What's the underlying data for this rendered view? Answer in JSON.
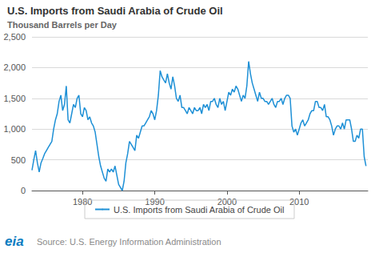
{
  "chart_data": {
    "type": "line",
    "title": "U.S. Imports from Saudi Arabia of Crude Oil",
    "subtitle": "Thousand Barrels per Day",
    "annotations": [
      "eia",
      "Source: U.S. Energy Information Administration"
    ],
    "legend": "bottom",
    "grid": true,
    "xlim": [
      1973,
      2019.5
    ],
    "xticks": [
      1980,
      1990,
      2000,
      2010
    ],
    "ylim": [
      0,
      2500
    ],
    "yticks": [
      0,
      500,
      {
        "value": 1000,
        "label": "1,000"
      },
      {
        "value": 1500,
        "label": "1,500"
      },
      {
        "value": 2000,
        "label": "2,000"
      },
      {
        "value": 2500,
        "label": "2,500"
      }
    ],
    "x": [
      1973,
      1973.25,
      1973.5,
      1973.75,
      1974,
      1974.25,
      1974.5,
      1974.75,
      1975,
      1975.25,
      1975.5,
      1975.75,
      1976,
      1976.25,
      1976.5,
      1976.75,
      1977,
      1977.25,
      1977.5,
      1977.75,
      1978,
      1978.25,
      1978.5,
      1978.75,
      1979,
      1979.25,
      1979.5,
      1979.75,
      1980,
      1980.25,
      1980.5,
      1980.75,
      1981,
      1981.25,
      1981.5,
      1981.75,
      1982,
      1982.25,
      1982.5,
      1982.75,
      1983,
      1983.25,
      1983.5,
      1983.75,
      1984,
      1984.25,
      1984.5,
      1984.75,
      1985,
      1985.25,
      1985.5,
      1985.75,
      1986,
      1986.25,
      1986.5,
      1986.75,
      1987,
      1987.25,
      1987.5,
      1987.75,
      1988,
      1988.25,
      1988.5,
      1988.75,
      1989,
      1989.25,
      1989.5,
      1989.75,
      1990,
      1990.25,
      1990.5,
      1990.75,
      1991,
      1991.25,
      1991.5,
      1991.75,
      1992,
      1992.25,
      1992.5,
      1992.75,
      1993,
      1993.25,
      1993.5,
      1993.75,
      1994,
      1994.25,
      1994.5,
      1994.75,
      1995,
      1995.25,
      1995.5,
      1995.75,
      1996,
      1996.25,
      1996.5,
      1996.75,
      1997,
      1997.25,
      1997.5,
      1997.75,
      1998,
      1998.25,
      1998.5,
      1998.75,
      1999,
      1999.25,
      1999.5,
      1999.75,
      2000,
      2000.25,
      2000.5,
      2000.75,
      2001,
      2001.25,
      2001.5,
      2001.75,
      2002,
      2002.25,
      2002.5,
      2002.75,
      2003,
      2003.25,
      2003.5,
      2003.75,
      2004,
      2004.25,
      2004.5,
      2004.75,
      2005,
      2005.25,
      2005.5,
      2005.75,
      2006,
      2006.25,
      2006.5,
      2006.75,
      2007,
      2007.25,
      2007.5,
      2007.75,
      2008,
      2008.25,
      2008.5,
      2008.75,
      2009,
      2009.25,
      2009.5,
      2009.75,
      2010,
      2010.25,
      2010.5,
      2010.75,
      2011,
      2011.25,
      2011.5,
      2011.75,
      2012,
      2012.25,
      2012.5,
      2012.75,
      2013,
      2013.25,
      2013.5,
      2013.75,
      2014,
      2014.25,
      2014.5,
      2014.75,
      2015,
      2015.25,
      2015.5,
      2015.75,
      2016,
      2016.25,
      2016.5,
      2016.75,
      2017,
      2017.25,
      2017.5,
      2017.75,
      2018,
      2018.25,
      2018.5,
      2018.75,
      2019,
      2019.25
    ],
    "series": [
      {
        "name": "U.S. Imports from Saudi Arabia of Crude Oil",
        "color": "#1e90d6",
        "values": [
          330,
          500,
          650,
          450,
          300,
          450,
          520,
          600,
          650,
          700,
          750,
          800,
          1000,
          1150,
          1250,
          1450,
          1550,
          1300,
          1400,
          1700,
          1150,
          1100,
          1250,
          1400,
          1350,
          1500,
          1550,
          1250,
          1200,
          1350,
          1300,
          1150,
          1200,
          1100,
          1050,
          950,
          750,
          550,
          400,
          300,
          200,
          150,
          350,
          300,
          350,
          300,
          400,
          250,
          100,
          50,
          0,
          150,
          450,
          600,
          800,
          750,
          700,
          650,
          900,
          850,
          950,
          1050,
          1050,
          1100,
          1150,
          1200,
          1300,
          1250,
          1150,
          1300,
          1550,
          1950,
          1850,
          1800,
          1750,
          1900,
          1750,
          1650,
          1850,
          1700,
          1500,
          1450,
          1550,
          1350,
          1350,
          1300,
          1250,
          1350,
          1300,
          1250,
          1350,
          1300,
          1300,
          1350,
          1250,
          1400,
          1350,
          1400,
          1300,
          1450,
          1450,
          1500,
          1400,
          1350,
          1500,
          1400,
          1450,
          1300,
          1450,
          1600,
          1550,
          1650,
          1600,
          1700,
          1650,
          1550,
          1450,
          1550,
          1500,
          1700,
          2100,
          1900,
          1750,
          1650,
          1550,
          1450,
          1600,
          1500,
          1500,
          1450,
          1450,
          1400,
          1450,
          1500,
          1400,
          1350,
          1450,
          1450,
          1500,
          1400,
          1500,
          1550,
          1550,
          1500,
          1050,
          950,
          1000,
          900,
          1000,
          1100,
          1150,
          1050,
          1100,
          1150,
          1250,
          1300,
          1300,
          1450,
          1450,
          1350,
          1350,
          1300,
          1400,
          1200,
          1200,
          1150,
          1050,
          900,
          1000,
          1050,
          1050,
          1000,
          1100,
          1000,
          1150,
          1150,
          1150,
          1000,
          800,
          800,
          900,
          850,
          1000,
          1000,
          550,
          400
        ]
      }
    ]
  }
}
